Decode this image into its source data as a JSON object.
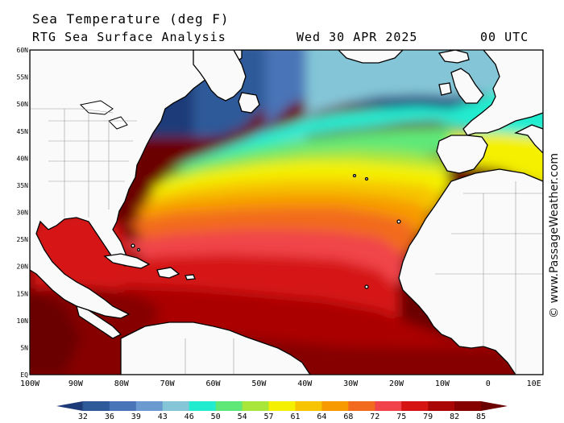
{
  "header": {
    "title": "Sea Temperature (deg F)",
    "subtitle": "RTG Sea Surface Analysis",
    "datetime": "Wed 30 APR 2025",
    "time": "00 UTC"
  },
  "watermark": "© www.PassageWeather.com",
  "map": {
    "region": "North Atlantic",
    "projection": "equirectangular",
    "lon_range": [
      -100,
      12
    ],
    "lat_range": [
      0,
      60
    ],
    "lat_labels": [
      "60N",
      "55N",
      "50N",
      "45N",
      "40N",
      "35N",
      "30N",
      "25N",
      "20N",
      "15N",
      "10N",
      "5N",
      "EQ"
    ],
    "lon_labels": [
      "100W",
      "90W",
      "80W",
      "70W",
      "60W",
      "50W",
      "40W",
      "30W",
      "20W",
      "10W",
      "0",
      "10E"
    ]
  },
  "legend": {
    "units": "deg F",
    "values": [
      "32",
      "36",
      "39",
      "43",
      "46",
      "50",
      "54",
      "57",
      "61",
      "64",
      "68",
      "72",
      "75",
      "79",
      "82",
      "85"
    ],
    "colors": [
      "#1d3a78",
      "#2f5a9a",
      "#4a74b8",
      "#6a9ad0",
      "#84c6d8",
      "#22ecd0",
      "#5fe878",
      "#a8e63a",
      "#f4f000",
      "#f6c400",
      "#f79a00",
      "#f26a1e",
      "#f0444a",
      "#d61414",
      "#aa0606",
      "#860000",
      "#6a0000"
    ]
  }
}
